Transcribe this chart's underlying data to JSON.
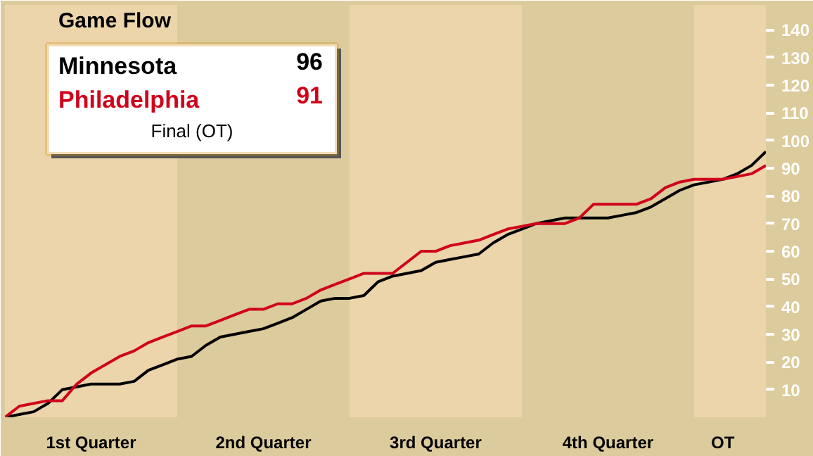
{
  "chart_data": {
    "type": "line",
    "title": "Game Flow",
    "annotations": [
      "96",
      "91",
      "Final (OT)"
    ],
    "categories": [
      null,
      null,
      null,
      null,
      null,
      null,
      "1st Quarter",
      null,
      null,
      null,
      null,
      null,
      null,
      null,
      null,
      null,
      null,
      null,
      "2nd Quarter",
      null,
      null,
      null,
      null,
      null,
      null,
      null,
      null,
      null,
      null,
      null,
      "3rd Quarter",
      null,
      null,
      null,
      null,
      null,
      null,
      null,
      null,
      null,
      null,
      null,
      "4th Quarter",
      null,
      null,
      null,
      null,
      null,
      null,
      null,
      "OT",
      null,
      null,
      null
    ],
    "ylim": [
      0,
      149
    ],
    "yticks": [
      10,
      20,
      30,
      40,
      50,
      60,
      70,
      80,
      90,
      100,
      110,
      120,
      130,
      140
    ],
    "grid": false,
    "legend": "top left",
    "marker": "none",
    "line_style": "solid",
    "series": [
      {
        "name": "Minnesota",
        "color": "#000000",
        "values": [
          0,
          1,
          2,
          5,
          10,
          11,
          12,
          12,
          12,
          13,
          17,
          19,
          21,
          22,
          26,
          29,
          30,
          31,
          32,
          34,
          36,
          39,
          42,
          43,
          43,
          44,
          49,
          51,
          52,
          53,
          56,
          57,
          58,
          59,
          63,
          66,
          68,
          70,
          71,
          72,
          72,
          72,
          72,
          73,
          74,
          76,
          79,
          82,
          84,
          85,
          86,
          88,
          91,
          96
        ]
      },
      {
        "name": "Philadelphia",
        "color": "#d0021b",
        "values": [
          0,
          4,
          5,
          6,
          6,
          12,
          16,
          19,
          22,
          24,
          27,
          29,
          31,
          33,
          33,
          35,
          37,
          39,
          39,
          41,
          41,
          43,
          46,
          48,
          50,
          52,
          52,
          52,
          56,
          60,
          60,
          62,
          63,
          64,
          66,
          68,
          69,
          70,
          70,
          70,
          72,
          77,
          77,
          77,
          77,
          79,
          83,
          85,
          86,
          86,
          86,
          87,
          88,
          91
        ]
      }
    ]
  }
}
